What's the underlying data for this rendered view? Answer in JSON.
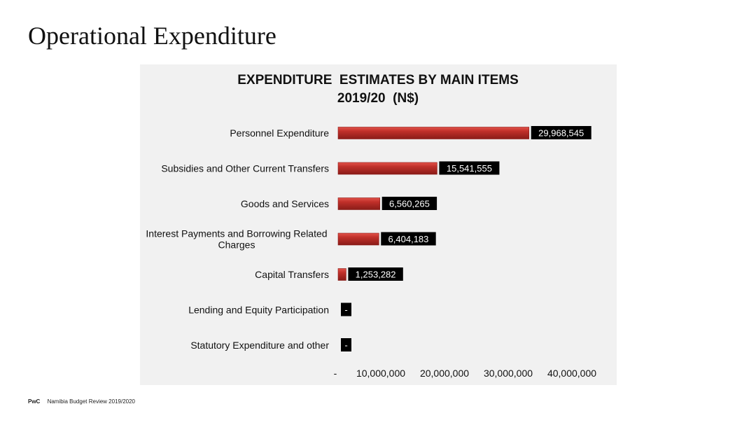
{
  "slide": {
    "title": "Operational Expenditure"
  },
  "footer": {
    "brand": "PwC",
    "text": "Namibia Budget Review 2019/2020"
  },
  "chart_data": {
    "type": "bar",
    "orientation": "horizontal",
    "title": "EXPENDITURE  ESTIMATES BY MAIN ITEMS",
    "subtitle": "2019/20  (N$)",
    "categories": [
      [
        "Personnel Expenditure"
      ],
      [
        "Subsidies and Other Current Transfers"
      ],
      [
        "Goods and Services"
      ],
      [
        "Interest Payments and Borrowing Related",
        "Charges"
      ],
      [
        "Capital Transfers"
      ],
      [
        "Lending and Equity Participation"
      ],
      [
        "Statutory Expenditure and other"
      ]
    ],
    "values": [
      29968545,
      15541555,
      6560265,
      6404183,
      1253282,
      0,
      0
    ],
    "data_labels": [
      "29,968,545",
      "15,541,555",
      "6,560,265",
      "6,404,183",
      "1,253,282",
      "-",
      "-"
    ],
    "xlim": [
      0,
      40000000
    ],
    "x_ticks": [
      "-",
      "10,000,000",
      "20,000,000",
      "30,000,000",
      "40,000,000"
    ],
    "grid": false,
    "colors": {
      "bar": "#c0302a",
      "bar_highlight": "#e2524a",
      "bar_shadow": "#8a1c18",
      "label_bg": "#000000",
      "label_text": "#ffffff",
      "panel": "#f1f1f1"
    }
  }
}
